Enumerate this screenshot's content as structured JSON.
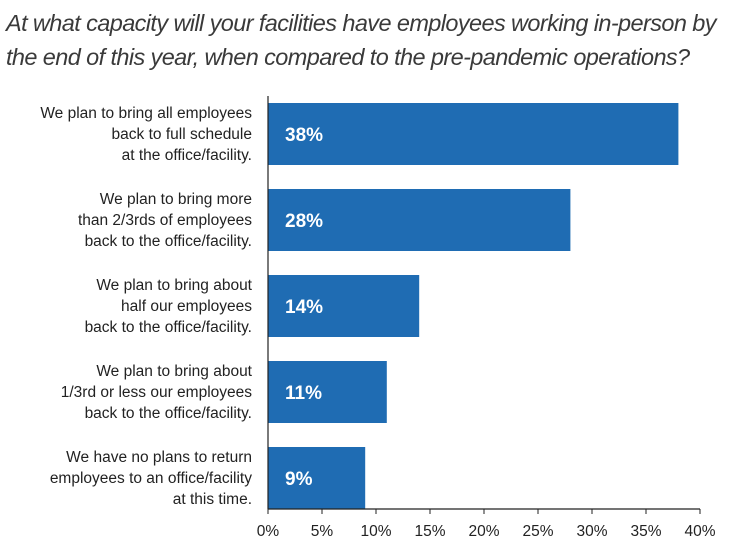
{
  "title_lines": [
    "At what capacity will your facilities have employees working in-person by",
    "the end of this year, when compared to the pre-pandemic operations?"
  ],
  "colors": {
    "bar": "#1f6cb3",
    "axis": "#222222",
    "bar_label": "#ffffff"
  },
  "chart_data": {
    "type": "bar",
    "orientation": "horizontal",
    "title": "At what capacity will your facilities have employees working in-person by the end of this year, when compared to the pre-pandemic operations?",
    "categories": [
      [
        "We plan to bring all employees",
        "back to full schedule",
        "at the office/facility."
      ],
      [
        "We plan to bring more",
        "than 2/3rds of employees",
        "back to the office/facility."
      ],
      [
        "We plan to bring about",
        "half our employees",
        "back to the office/facility."
      ],
      [
        "We plan to bring about",
        "1/3rd or less our employees",
        "back to the office/facility."
      ],
      [
        "We have no plans to return",
        "employees to an office/facility",
        "at this time."
      ]
    ],
    "values": [
      38,
      28,
      14,
      11,
      9
    ],
    "value_labels": [
      "38%",
      "28%",
      "14%",
      "11%",
      "9%"
    ],
    "xlim": [
      0,
      40
    ],
    "xticks": [
      "0%",
      "5%",
      "10%",
      "15%",
      "20%",
      "25%",
      "30%",
      "35%",
      "40%"
    ],
    "grid": false,
    "legend": "none"
  }
}
